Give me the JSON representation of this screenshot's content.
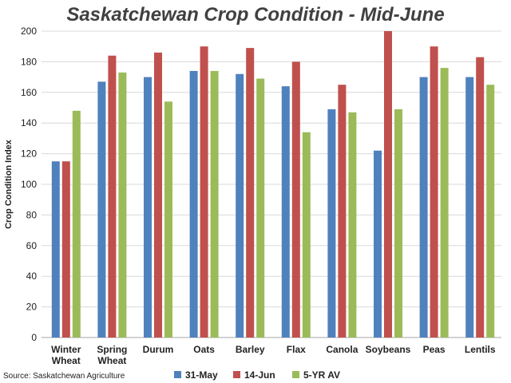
{
  "chart_data": {
    "type": "bar",
    "title": "Saskatchewan Crop Condition - Mid-June",
    "ylabel": "Crop Condition Index",
    "xlabel": "",
    "ylim": [
      0,
      200
    ],
    "yticks": [
      0,
      20,
      40,
      60,
      80,
      100,
      120,
      140,
      160,
      180,
      200
    ],
    "grid": true,
    "legend_position": "bottom",
    "categories": [
      [
        "Winter",
        "Wheat"
      ],
      [
        "Spring",
        "Wheat"
      ],
      [
        "Durum"
      ],
      [
        "Oats"
      ],
      [
        "Barley"
      ],
      [
        "Flax"
      ],
      [
        "Canola"
      ],
      [
        "Soybeans"
      ],
      [
        "Peas"
      ],
      [
        "Lentils"
      ]
    ],
    "series": [
      {
        "name": "31-May",
        "color": "#4f81bd",
        "values": [
          115,
          167,
          170,
          174,
          172,
          164,
          149,
          122,
          170,
          170
        ]
      },
      {
        "name": "14-Jun",
        "color": "#c0504d",
        "values": [
          115,
          184,
          186,
          190,
          189,
          180,
          165,
          200,
          190,
          183
        ]
      },
      {
        "name": "5-YR AV",
        "color": "#9bbb59",
        "values": [
          148,
          173,
          154,
          174,
          169,
          134,
          147,
          149,
          176,
          165
        ]
      }
    ],
    "source": "Source: Saskatchewan Agriculture"
  }
}
